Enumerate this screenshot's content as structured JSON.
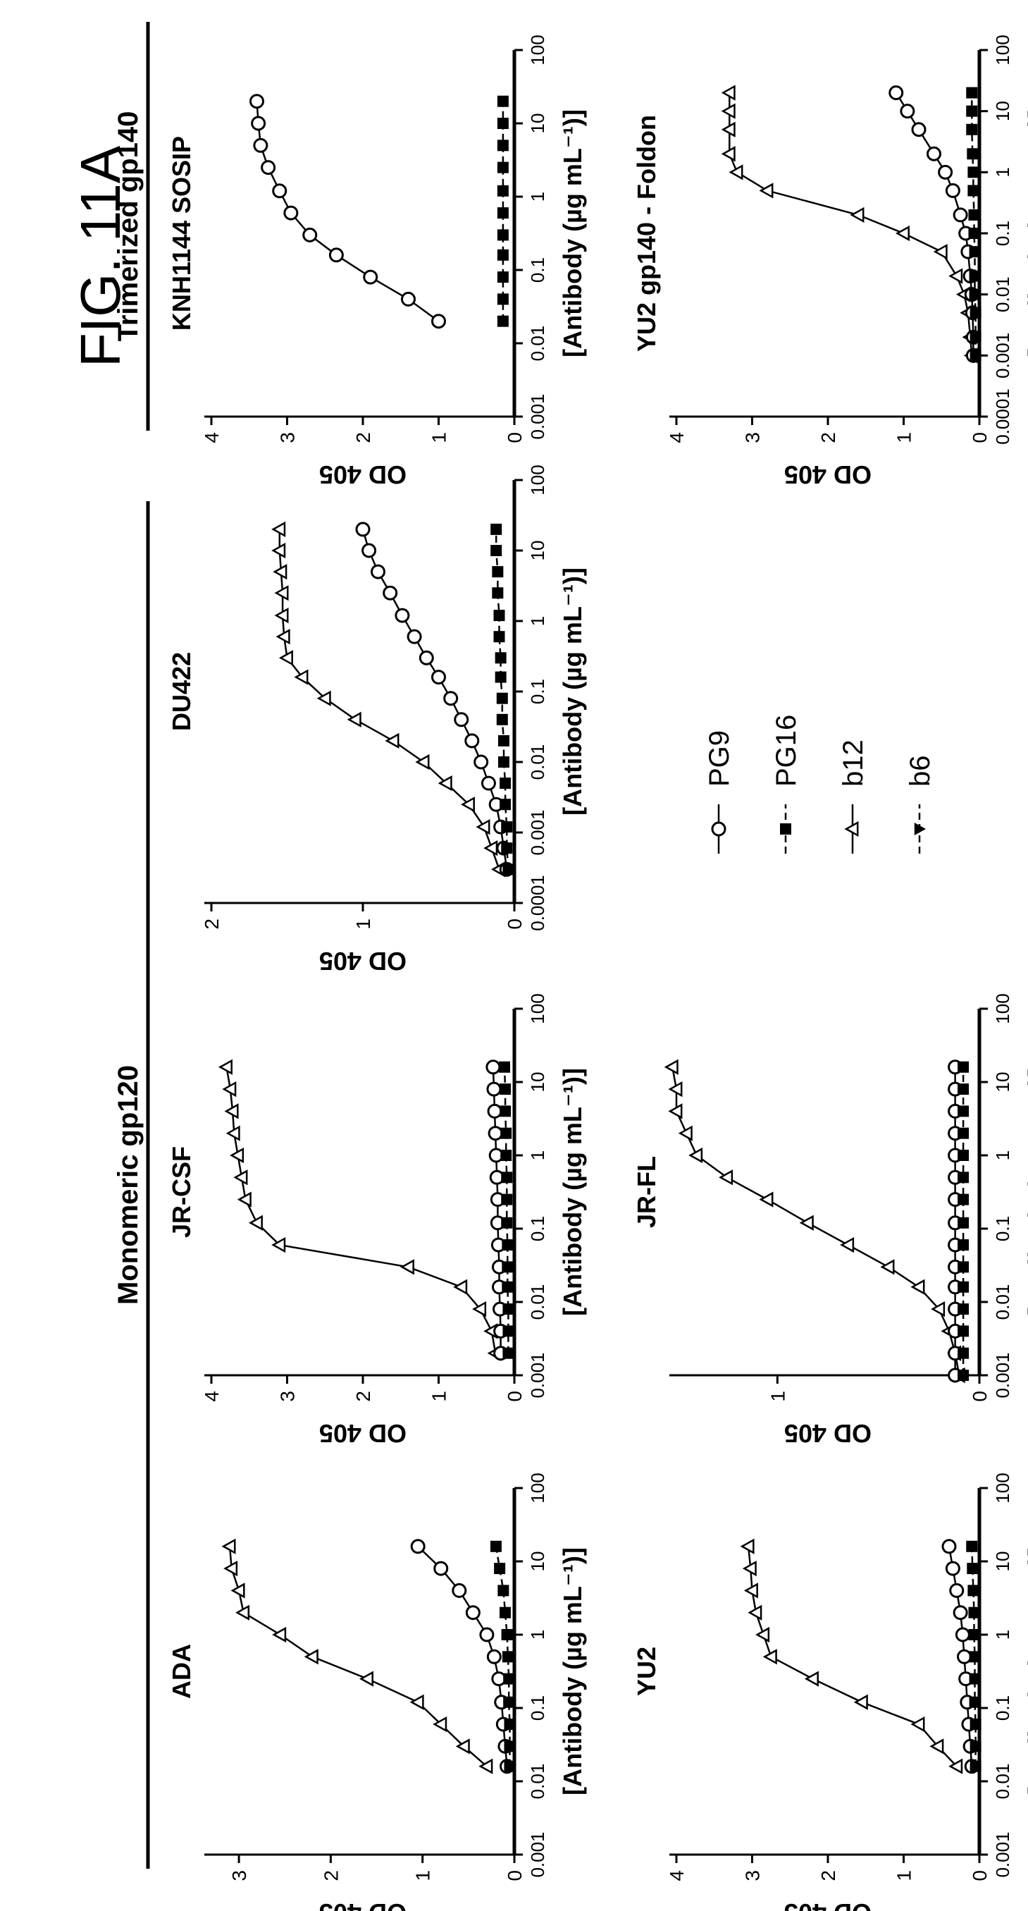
{
  "figure": {
    "label": "FIG. 11A",
    "group_monomeric": "Monomeric gp120",
    "group_trimerized": "Trimerized gp140"
  },
  "legend": {
    "items": [
      {
        "name": "PG9",
        "marker": "open-circle",
        "line": "solid"
      },
      {
        "name": "PG16",
        "marker": "filled-square",
        "line": "dashed"
      },
      {
        "name": "b12",
        "marker": "open-triangle",
        "line": "solid"
      },
      {
        "name": "b6",
        "marker": "filled-down-triangle",
        "line": "dashed"
      }
    ]
  },
  "chart_data": [
    {
      "type": "line",
      "title": "ADA",
      "xlabel": "[Antibody (µg mL⁻¹)]",
      "ylabel": "OD 405",
      "xscale": "log",
      "xlim": [
        0.001,
        100
      ],
      "ylim": [
        0,
        3.3
      ],
      "xticks": [
        "0.001",
        "0.01",
        "0.1",
        "1",
        "10",
        "100"
      ],
      "yticks": [
        "0",
        "1",
        "2",
        "3"
      ],
      "series": [
        {
          "name": "b12",
          "x": [
            0.016,
            0.03,
            0.06,
            0.12,
            0.25,
            0.5,
            1,
            2,
            4,
            8,
            16
          ],
          "y": [
            0.3,
            0.55,
            0.8,
            1.05,
            1.6,
            2.2,
            2.55,
            2.95,
            3.0,
            3.08,
            3.1
          ]
        },
        {
          "name": "PG9",
          "x": [
            0.016,
            0.03,
            0.06,
            0.12,
            0.25,
            0.5,
            1,
            2,
            4,
            8,
            16
          ],
          "y": [
            0.08,
            0.1,
            0.12,
            0.14,
            0.17,
            0.22,
            0.3,
            0.45,
            0.6,
            0.8,
            1.05
          ]
        },
        {
          "name": "PG16",
          "x": [
            0.016,
            0.03,
            0.06,
            0.12,
            0.25,
            0.5,
            1,
            2,
            4,
            8,
            16
          ],
          "y": [
            0.05,
            0.05,
            0.05,
            0.06,
            0.06,
            0.07,
            0.08,
            0.1,
            0.12,
            0.16,
            0.2
          ]
        }
      ]
    },
    {
      "type": "line",
      "title": "JR-CSF",
      "xlabel": "[Antibody (µg mL⁻¹)]",
      "ylabel": "OD 405",
      "xscale": "log",
      "xlim": [
        0.001,
        100
      ],
      "ylim": [
        0,
        4
      ],
      "xticks": [
        "0.001",
        "0.01",
        "0.1",
        "1",
        "10",
        "100"
      ],
      "yticks": [
        "0",
        "1",
        "2",
        "3",
        "4"
      ],
      "series": [
        {
          "name": "b12",
          "x": [
            0.002,
            0.004,
            0.008,
            0.016,
            0.03,
            0.06,
            0.12,
            0.25,
            0.5,
            1,
            2,
            4,
            8,
            16
          ],
          "y": [
            0.25,
            0.3,
            0.45,
            0.7,
            1.4,
            3.1,
            3.4,
            3.55,
            3.6,
            3.65,
            3.7,
            3.72,
            3.75,
            3.8
          ]
        },
        {
          "name": "PG9",
          "x": [
            0.002,
            0.004,
            0.008,
            0.016,
            0.03,
            0.06,
            0.12,
            0.25,
            0.5,
            1,
            2,
            4,
            8,
            16
          ],
          "y": [
            0.18,
            0.18,
            0.19,
            0.2,
            0.2,
            0.21,
            0.22,
            0.22,
            0.23,
            0.24,
            0.25,
            0.26,
            0.27,
            0.28
          ]
        },
        {
          "name": "PG16",
          "x": [
            0.002,
            0.004,
            0.008,
            0.016,
            0.03,
            0.06,
            0.12,
            0.25,
            0.5,
            1,
            2,
            4,
            8,
            16
          ],
          "y": [
            0.08,
            0.08,
            0.08,
            0.09,
            0.09,
            0.09,
            0.1,
            0.1,
            0.1,
            0.11,
            0.11,
            0.12,
            0.12,
            0.13
          ]
        }
      ]
    },
    {
      "type": "line",
      "title": "DU422",
      "xlabel": "[Antibody (µg mL⁻¹)]",
      "ylabel": "OD 405",
      "xscale": "log",
      "xlim": [
        0.0001,
        100
      ],
      "ylim": [
        0,
        2
      ],
      "xticks": [
        "0.0001",
        "0.001",
        "0.01",
        "0.1",
        "1",
        "10",
        "100"
      ],
      "yticks": [
        "0",
        "1",
        "2"
      ],
      "series": [
        {
          "name": "b12",
          "x": [
            0.0003,
            0.0006,
            0.0012,
            0.0025,
            0.005,
            0.01,
            0.02,
            0.04,
            0.08,
            0.16,
            0.3,
            0.6,
            1.2,
            2.5,
            5,
            10,
            20
          ],
          "y": [
            0.1,
            0.15,
            0.2,
            0.3,
            0.45,
            0.6,
            0.8,
            1.05,
            1.25,
            1.4,
            1.5,
            1.52,
            1.53,
            1.53,
            1.54,
            1.55,
            1.55
          ]
        },
        {
          "name": "PG9",
          "x": [
            0.0003,
            0.0006,
            0.0012,
            0.0025,
            0.005,
            0.01,
            0.02,
            0.04,
            0.08,
            0.16,
            0.3,
            0.6,
            1.2,
            2.5,
            5,
            10,
            20
          ],
          "y": [
            0.05,
            0.07,
            0.09,
            0.12,
            0.17,
            0.22,
            0.28,
            0.35,
            0.42,
            0.5,
            0.58,
            0.66,
            0.74,
            0.82,
            0.9,
            0.96,
            1.0
          ]
        },
        {
          "name": "PG16",
          "x": [
            0.0003,
            0.0006,
            0.0012,
            0.0025,
            0.005,
            0.01,
            0.02,
            0.04,
            0.08,
            0.16,
            0.3,
            0.6,
            1.2,
            2.5,
            5,
            10,
            20
          ],
          "y": [
            0.04,
            0.05,
            0.05,
            0.06,
            0.06,
            0.07,
            0.07,
            0.08,
            0.08,
            0.09,
            0.09,
            0.1,
            0.1,
            0.11,
            0.11,
            0.12,
            0.12
          ]
        }
      ]
    },
    {
      "type": "line",
      "title": "KNH1144 SOSIP",
      "xlabel": "[Antibody (µg mL⁻¹)]",
      "ylabel": "OD 405",
      "xscale": "log",
      "xlim": [
        0.001,
        100
      ],
      "ylim": [
        0,
        4
      ],
      "xticks": [
        "0.001",
        "0.01",
        "0.1",
        "1",
        "10",
        "100"
      ],
      "yticks": [
        "0",
        "1",
        "2",
        "3",
        "4"
      ],
      "series": [
        {
          "name": "PG9",
          "x": [
            0.02,
            0.04,
            0.08,
            0.16,
            0.3,
            0.6,
            1.2,
            2.5,
            5,
            10,
            20
          ],
          "y": [
            1.0,
            1.4,
            1.9,
            2.35,
            2.7,
            2.95,
            3.1,
            3.25,
            3.35,
            3.38,
            3.4
          ]
        },
        {
          "name": "PG16",
          "x": [
            0.02,
            0.04,
            0.08,
            0.16,
            0.3,
            0.6,
            1.2,
            2.5,
            5,
            10,
            20
          ],
          "y": [
            0.15,
            0.15,
            0.15,
            0.15,
            0.15,
            0.15,
            0.15,
            0.15,
            0.15,
            0.15,
            0.15
          ]
        }
      ]
    },
    {
      "type": "line",
      "title": "YU2",
      "xlabel": "[Antibody (µg mL⁻¹)]",
      "ylabel": "OD 405",
      "xscale": "log",
      "xlim": [
        0.001,
        100
      ],
      "ylim": [
        0,
        4
      ],
      "xticks": [
        "0.001",
        "0.01",
        "0.1",
        "1",
        "10",
        "100"
      ],
      "yticks": [
        "0",
        "1",
        "2",
        "3",
        "4"
      ],
      "series": [
        {
          "name": "b12",
          "x": [
            0.016,
            0.03,
            0.06,
            0.12,
            0.25,
            0.5,
            1,
            2,
            4,
            8,
            16
          ],
          "y": [
            0.3,
            0.55,
            0.8,
            1.55,
            2.2,
            2.75,
            2.85,
            2.95,
            3.0,
            3.02,
            3.05
          ]
        },
        {
          "name": "PG9",
          "x": [
            0.016,
            0.03,
            0.06,
            0.12,
            0.25,
            0.5,
            1,
            2,
            4,
            8,
            16
          ],
          "y": [
            0.1,
            0.12,
            0.14,
            0.16,
            0.18,
            0.2,
            0.22,
            0.25,
            0.3,
            0.35,
            0.4
          ]
        },
        {
          "name": "PG16",
          "x": [
            0.016,
            0.03,
            0.06,
            0.12,
            0.25,
            0.5,
            1,
            2,
            4,
            8,
            16
          ],
          "y": [
            0.05,
            0.05,
            0.05,
            0.06,
            0.06,
            0.06,
            0.07,
            0.07,
            0.08,
            0.09,
            0.1
          ]
        }
      ]
    },
    {
      "type": "line",
      "title": "JR-FL",
      "xlabel": "[Antibody (µg mL⁻¹)]",
      "ylabel": "OD 405",
      "xscale": "log",
      "xlim": [
        0.001,
        100
      ],
      "ylim": [
        0,
        1.5
      ],
      "xticks": [
        "0.001",
        "0.01",
        "0.1",
        "1",
        "10",
        "100"
      ],
      "yticks": [
        "0",
        "1"
      ],
      "series": [
        {
          "name": "b12",
          "x": [
            0.001,
            0.002,
            0.004,
            0.008,
            0.016,
            0.03,
            0.06,
            0.12,
            0.25,
            0.5,
            1,
            2,
            4,
            8,
            16
          ],
          "y": [
            0.1,
            0.12,
            0.15,
            0.2,
            0.3,
            0.45,
            0.65,
            0.85,
            1.05,
            1.25,
            1.4,
            1.45,
            1.5,
            1.5,
            1.52
          ]
        },
        {
          "name": "PG9",
          "x": [
            0.001,
            0.002,
            0.004,
            0.008,
            0.016,
            0.03,
            0.06,
            0.12,
            0.25,
            0.5,
            1,
            2,
            4,
            8,
            16
          ],
          "y": [
            0.12,
            0.12,
            0.12,
            0.12,
            0.12,
            0.12,
            0.12,
            0.12,
            0.12,
            0.12,
            0.12,
            0.12,
            0.12,
            0.12,
            0.12
          ]
        },
        {
          "name": "PG16",
          "x": [
            0.001,
            0.002,
            0.004,
            0.008,
            0.016,
            0.03,
            0.06,
            0.12,
            0.25,
            0.5,
            1,
            2,
            4,
            8,
            16
          ],
          "y": [
            0.08,
            0.08,
            0.08,
            0.08,
            0.08,
            0.08,
            0.08,
            0.08,
            0.08,
            0.08,
            0.08,
            0.08,
            0.08,
            0.08,
            0.08
          ]
        }
      ]
    },
    {
      "type": "line",
      "title": "YU2 gp140 - Foldon",
      "xlabel": "[Antibody (µg mL⁻¹)]",
      "ylabel": "OD 405",
      "xscale": "log",
      "xlim": [
        0.0001,
        100
      ],
      "ylim": [
        0,
        4
      ],
      "xticks": [
        "0.0001",
        "0.001",
        "0.01",
        "0.1",
        "1",
        "10",
        "100"
      ],
      "yticks": [
        "0",
        "1",
        "2",
        "3",
        "4"
      ],
      "series": [
        {
          "name": "b12",
          "x": [
            0.001,
            0.002,
            0.005,
            0.01,
            0.02,
            0.05,
            0.1,
            0.2,
            0.5,
            1,
            2,
            5,
            10,
            20
          ],
          "y": [
            0.1,
            0.12,
            0.15,
            0.2,
            0.3,
            0.5,
            1.0,
            1.6,
            2.8,
            3.2,
            3.3,
            3.3,
            3.3,
            3.3
          ]
        },
        {
          "name": "PG9",
          "x": [
            0.001,
            0.002,
            0.005,
            0.01,
            0.02,
            0.05,
            0.1,
            0.2,
            0.5,
            1,
            2,
            5,
            10,
            20
          ],
          "y": [
            0.08,
            0.08,
            0.09,
            0.1,
            0.12,
            0.15,
            0.18,
            0.25,
            0.35,
            0.45,
            0.6,
            0.8,
            0.95,
            1.1
          ]
        },
        {
          "name": "PG16",
          "x": [
            0.001,
            0.002,
            0.005,
            0.01,
            0.02,
            0.05,
            0.1,
            0.2,
            0.5,
            1,
            2,
            5,
            10,
            20
          ],
          "y": [
            0.05,
            0.05,
            0.05,
            0.06,
            0.06,
            0.06,
            0.07,
            0.07,
            0.08,
            0.08,
            0.09,
            0.1,
            0.1,
            0.1
          ]
        }
      ]
    }
  ]
}
